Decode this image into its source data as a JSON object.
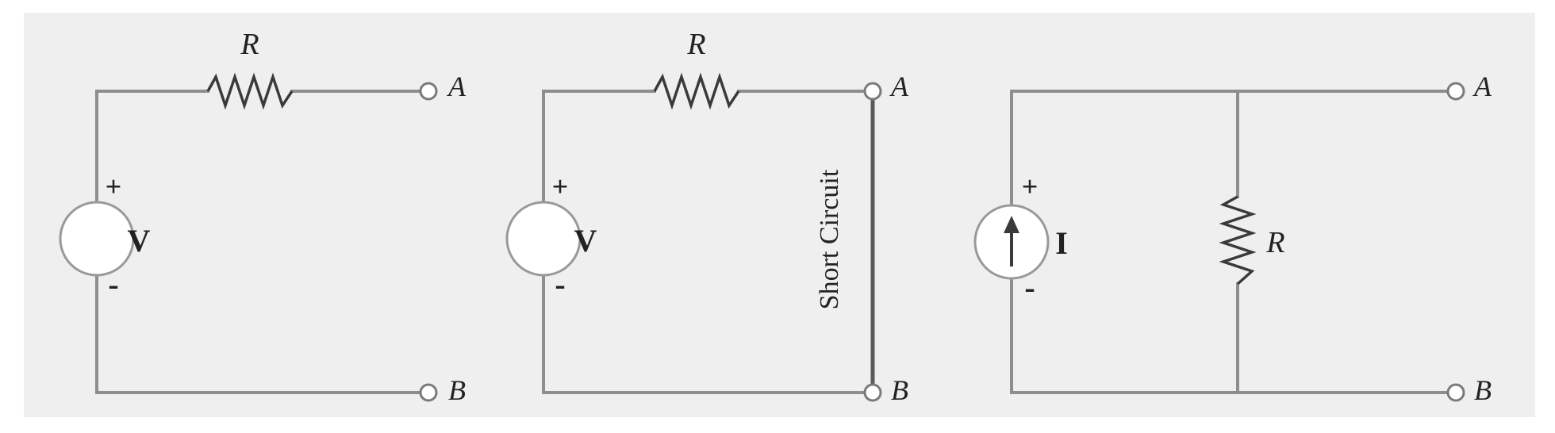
{
  "circuits": [
    {
      "resistor_label": "R",
      "source_label": "V",
      "plus": "+",
      "minus": "-",
      "terminal_a": "A",
      "terminal_b": "B"
    },
    {
      "resistor_label": "R",
      "source_label": "V",
      "plus": "+",
      "minus": "-",
      "terminal_a": "A",
      "terminal_b": "B",
      "short_label": "Short Circuit"
    },
    {
      "resistor_label": "R",
      "source_label": "I",
      "plus": "+",
      "minus": "-",
      "terminal_a": "A",
      "terminal_b": "B"
    }
  ],
  "colors": {
    "background": "#efefef",
    "wire": "#8e8e8e",
    "resistor": "#3a3a3a",
    "text": "#222222"
  }
}
